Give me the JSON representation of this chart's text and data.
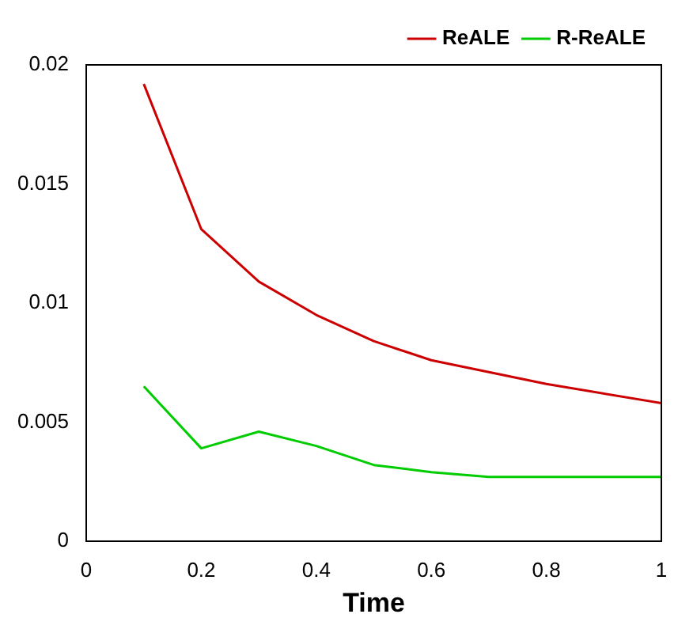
{
  "chart_data": {
    "type": "line",
    "xlabel": "Time",
    "x": [
      0.1,
      0.2,
      0.3,
      0.4,
      0.5,
      0.6,
      0.7,
      0.8,
      1.0
    ],
    "series": [
      {
        "name": "ReALE",
        "color": "#cc0000",
        "values": [
          0.0192,
          0.0131,
          0.0109,
          0.0095,
          0.0084,
          0.0076,
          0.0071,
          0.0066,
          0.0058
        ]
      },
      {
        "name": "R-ReALE",
        "color": "#00cc00",
        "values": [
          0.0065,
          0.0039,
          0.0046,
          0.004,
          0.0032,
          0.0029,
          0.0027,
          0.0027,
          0.0027
        ]
      }
    ],
    "xlim": [
      0,
      1
    ],
    "xticks": [
      0,
      0.2,
      0.4,
      0.6,
      0.8,
      1
    ],
    "ylim": [
      0,
      0.02
    ],
    "yticks": [
      0,
      0.005,
      0.01,
      0.015,
      0.02
    ],
    "grid": false,
    "legend": "top right",
    "marker": "none",
    "line_style": "solid"
  }
}
